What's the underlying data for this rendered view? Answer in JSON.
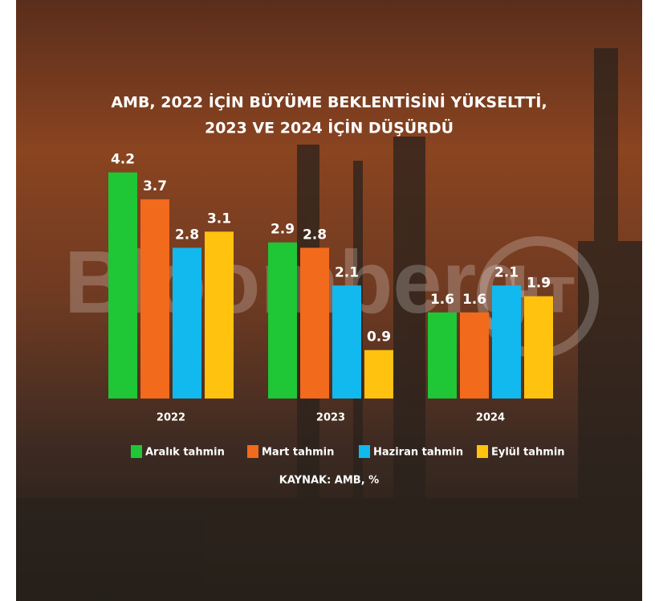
{
  "chart_data": {
    "type": "bar",
    "title": [
      "AMB, 2022 İÇİN BÜYÜME BEKLENTİSİNİ YÜKSELTTİ,",
      "2023 VE 2024 İÇİN DÜŞÜRDÜ"
    ],
    "categories": [
      "2022",
      "2023",
      "2024"
    ],
    "series": [
      {
        "name": "Aralık tahmin",
        "color": "#1fc635",
        "values": [
          4.2,
          2.9,
          1.6
        ]
      },
      {
        "name": "Mart tahmin",
        "color": "#f26a1b",
        "values": [
          3.7,
          2.8,
          1.6
        ]
      },
      {
        "name": "Haziran tahmin",
        "color": "#12b9ef",
        "values": [
          2.8,
          2.1,
          2.1
        ]
      },
      {
        "name": "Eylül tahmin",
        "color": "#ffc20e",
        "values": [
          3.1,
          0.9,
          1.9
        ]
      }
    ],
    "source": "KAYNAK: AMB, %",
    "watermark": "Bloomberg",
    "logo": "HT"
  }
}
